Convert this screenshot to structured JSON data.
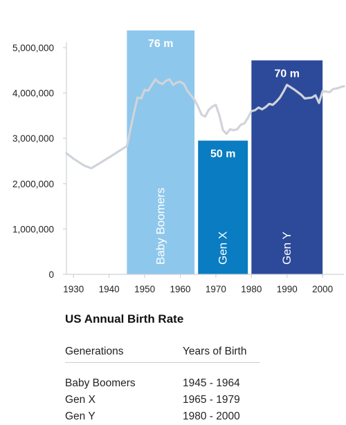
{
  "chart_data": {
    "type": "line",
    "title": "US Annual Birth Rate",
    "xlim": [
      1928,
      2006
    ],
    "ylim": [
      0,
      5000000
    ],
    "x_ticks": [
      1930,
      1940,
      1950,
      1960,
      1970,
      1980,
      1990,
      2000
    ],
    "y_ticks": [
      0,
      1000000,
      2000000,
      3000000,
      4000000,
      5000000
    ],
    "y_tick_labels": [
      "0",
      "1,000,000",
      "2,000,000",
      "3,000,000",
      "4,000,000",
      "5,000,000"
    ],
    "grid": false,
    "line_color": "#d0d4da",
    "series": [
      {
        "x": [
          1928,
          1930,
          1933,
          1935,
          1940,
          1945,
          1946,
          1947,
          1948,
          1949,
          1950,
          1951,
          1952,
          1953,
          1954,
          1955,
          1956,
          1957,
          1958,
          1959,
          1960,
          1961,
          1962,
          1963,
          1964,
          1965,
          1966,
          1967,
          1968,
          1969,
          1970,
          1971,
          1972,
          1973,
          1974,
          1975,
          1976,
          1977,
          1978,
          1979,
          1980,
          1981,
          1982,
          1983,
          1984,
          1985,
          1986,
          1987,
          1988,
          1989,
          1990,
          1991,
          1992,
          1993,
          1994,
          1995,
          1996,
          1997,
          1998,
          1999,
          2000,
          2001,
          2002,
          2003,
          2004,
          2005,
          2006
        ],
        "y": [
          2670000,
          2550000,
          2400000,
          2340000,
          2580000,
          2830000,
          3200000,
          3570000,
          3900000,
          3880000,
          4070000,
          4050000,
          4180000,
          4300000,
          4230000,
          4200000,
          4270000,
          4300000,
          4180000,
          4230000,
          4250000,
          4200000,
          4050000,
          3950000,
          3850000,
          3700000,
          3520000,
          3480000,
          3630000,
          3700000,
          3740000,
          3500000,
          3180000,
          3100000,
          3200000,
          3180000,
          3200000,
          3300000,
          3330000,
          3450000,
          3600000,
          3620000,
          3680000,
          3640000,
          3690000,
          3760000,
          3740000,
          3810000,
          3900000,
          4030000,
          4180000,
          4130000,
          4080000,
          4020000,
          3960000,
          3880000,
          3890000,
          3900000,
          3950000,
          3780000,
          4040000,
          4030000,
          4020000,
          4090000,
          4100000,
          4130000,
          4150000
        ]
      }
    ],
    "bands": [
      {
        "label": "Baby Boomers",
        "value_label": "76 m",
        "x_start": 1945,
        "x_end": 1964,
        "height": 5380000,
        "color": "#8ec7ec"
      },
      {
        "label": "Gen X",
        "value_label": "50 m",
        "x_start": 1965,
        "x_end": 1979,
        "height": 2950000,
        "color": "#0a7cc1"
      },
      {
        "label": "Gen Y",
        "value_label": "70 m",
        "x_start": 1980,
        "x_end": 2000,
        "height": 4720000,
        "color": "#2d4a9a"
      }
    ]
  },
  "table": {
    "headers": [
      "Generations",
      "Years of Birth"
    ],
    "rows": [
      [
        "Baby Boomers",
        "1945 - 1964"
      ],
      [
        "Gen X",
        "1965 - 1979"
      ],
      [
        "Gen Y",
        "1980 - 2000"
      ]
    ]
  }
}
